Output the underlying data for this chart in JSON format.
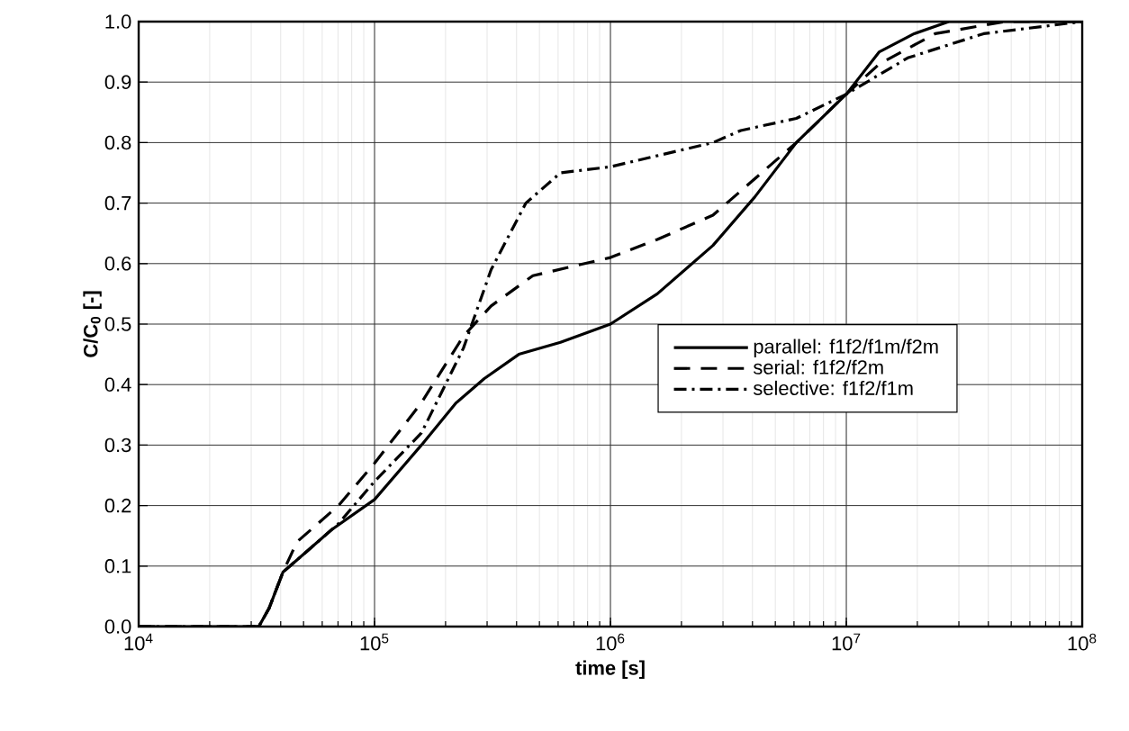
{
  "chart_data": {
    "type": "line",
    "xlabel": "**time [s]**",
    "ylabel": "**C/C$_{0}$ [-]**",
    "log": "x",
    "grid": true,
    "legend": "right",
    "marker": "none",
    "xlim": [
      10000,
      100000000
    ],
    "ylim": [
      0,
      1
    ],
    "xticks": [
      {
        "value": 10000,
        "label": "10$^{4}$"
      },
      {
        "value": 100000,
        "label": "10$^{5}$"
      },
      {
        "value": 1000000,
        "label": "10$^{6}$"
      },
      {
        "value": 10000000,
        "label": "10$^{7}$"
      },
      {
        "value": 100000000,
        "label": "10$^{8}$"
      }
    ],
    "yticks": [
      {
        "value": 0,
        "label": "0.0"
      },
      {
        "value": 0.1,
        "label": "0.1"
      },
      {
        "value": 0.2,
        "label": "0.2"
      },
      {
        "value": 0.3,
        "label": "0.3"
      },
      {
        "value": 0.4,
        "label": "0.4"
      },
      {
        "value": 0.5,
        "label": "0.5"
      },
      {
        "value": 0.6,
        "label": "0.6"
      },
      {
        "value": 0.7,
        "label": "0.7"
      },
      {
        "value": 0.8,
        "label": "0.8"
      },
      {
        "value": 0.9,
        "label": "0.9"
      },
      {
        "value": 1,
        "label": "1.0"
      }
    ],
    "series": [
      {
        "name": "parallel: f1f2/f1m/f2m",
        "color": "#000000",
        "line_style": "solid",
        "x": [
          10000,
          32300,
          35700,
          40900,
          46900,
          65700,
          100000,
          158000,
          222000,
          292000,
          409000,
          614000,
          1000000,
          1580000,
          2720000,
          4090000,
          6140000,
          10000000,
          13800000,
          19400000,
          27200000,
          46900000,
          100000000
        ],
        "values": [
          0,
          0,
          0.03,
          0.09,
          0.11,
          0.16,
          0.21,
          0.3,
          0.37,
          0.41,
          0.45,
          0.47,
          0.5,
          0.55,
          0.63,
          0.71,
          0.8,
          0.88,
          0.95,
          0.98,
          1.0,
          1.0,
          1.0
        ]
      },
      {
        "name": "serial: f1f2/f2m",
        "color": "#000000",
        "line_style": "dashed",
        "x": [
          10000,
          32300,
          35700,
          40900,
          46900,
          70300,
          100000,
          158000,
          238000,
          312000,
          469000,
          1000000,
          1580000,
          2720000,
          3570000,
          6140000,
          10000000,
          13800000,
          23800000,
          46900000,
          100000000
        ],
        "values": [
          0,
          0,
          0.03,
          0.09,
          0.14,
          0.2,
          0.27,
          0.37,
          0.48,
          0.53,
          0.58,
          0.61,
          0.64,
          0.68,
          0.72,
          0.8,
          0.88,
          0.93,
          0.98,
          1.0,
          1.0
        ]
      },
      {
        "name": "selective: f1f2/f1m",
        "color": "#000000",
        "line_style": "dashdot",
        "x": [
          10000,
          32300,
          35700,
          40900,
          46900,
          70300,
          100000,
          158000,
          238000,
          312000,
          438000,
          614000,
          1000000,
          2720000,
          3570000,
          6140000,
          10000000,
          18200000,
          38200000,
          100000000
        ],
        "values": [
          0,
          0,
          0.03,
          0.09,
          0.11,
          0.17,
          0.24,
          0.32,
          0.46,
          0.59,
          0.7,
          0.75,
          0.76,
          0.8,
          0.82,
          0.84,
          0.88,
          0.94,
          0.98,
          1.0
        ]
      }
    ]
  }
}
